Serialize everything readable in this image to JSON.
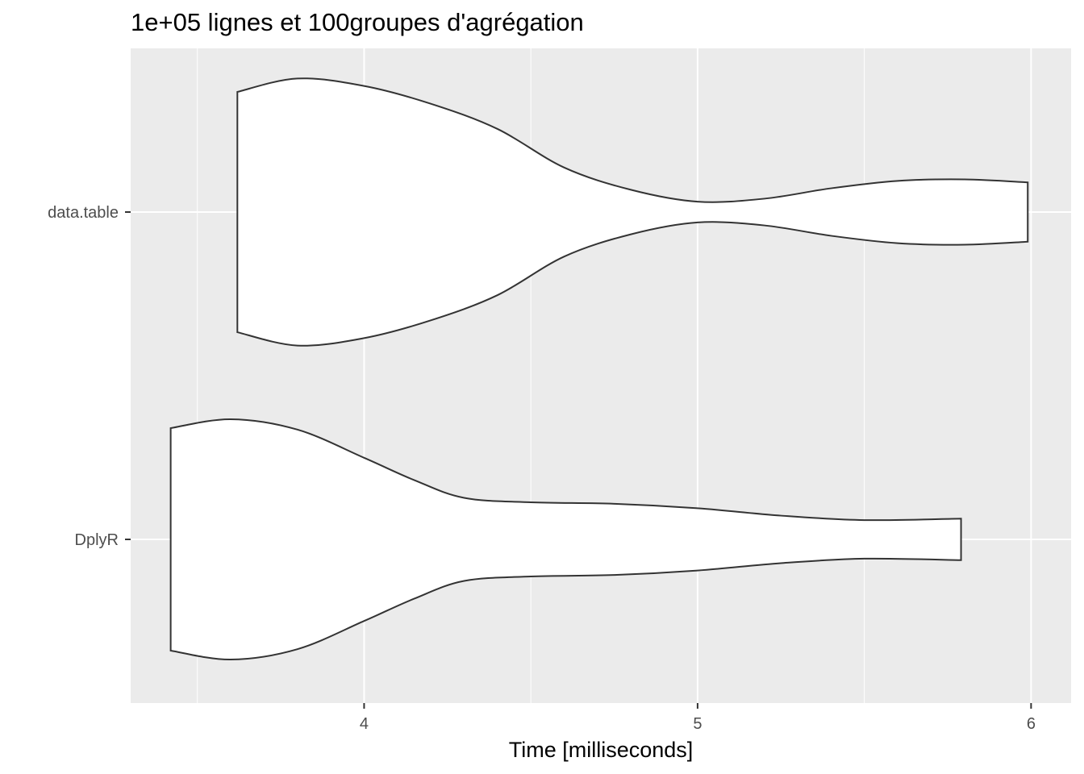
{
  "chart_data": {
    "type": "violin",
    "orientation": "horizontal",
    "title": "1e+05 lignes et 100groupes d'agrégation",
    "xlabel": "Time [milliseconds]",
    "ylabel": "",
    "xlim": [
      3.3,
      6.12
    ],
    "x_ticks": [
      4,
      5,
      6
    ],
    "categories": [
      "DplyR",
      "data.table"
    ],
    "grid": true,
    "background": "#ebebeb",
    "outline_color": "#333333",
    "fill_color": "#ffffff",
    "violins": [
      {
        "category": "DplyR",
        "min": 3.42,
        "max": 5.79,
        "profile": [
          [
            3.42,
            0.75
          ],
          [
            3.6,
            0.81
          ],
          [
            3.8,
            0.74
          ],
          [
            4.0,
            0.55
          ],
          [
            4.15,
            0.4
          ],
          [
            4.3,
            0.28
          ],
          [
            4.5,
            0.25
          ],
          [
            4.75,
            0.24
          ],
          [
            5.0,
            0.21
          ],
          [
            5.25,
            0.16
          ],
          [
            5.5,
            0.13
          ],
          [
            5.79,
            0.14
          ]
        ]
      },
      {
        "category": "data.table",
        "min": 3.62,
        "max": 5.99,
        "profile": [
          [
            3.62,
            0.81
          ],
          [
            3.8,
            0.9
          ],
          [
            4.0,
            0.85
          ],
          [
            4.2,
            0.73
          ],
          [
            4.4,
            0.56
          ],
          [
            4.6,
            0.3
          ],
          [
            4.8,
            0.15
          ],
          [
            5.0,
            0.07
          ],
          [
            5.2,
            0.09
          ],
          [
            5.4,
            0.16
          ],
          [
            5.6,
            0.21
          ],
          [
            5.8,
            0.22
          ],
          [
            5.99,
            0.2
          ]
        ]
      }
    ]
  }
}
